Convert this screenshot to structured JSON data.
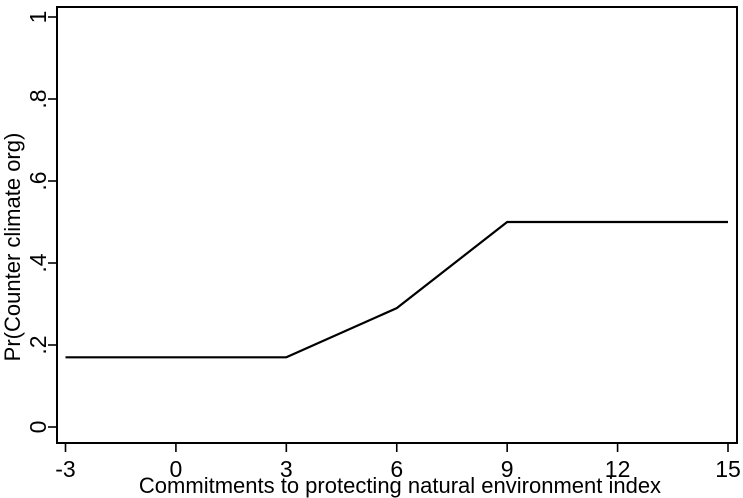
{
  "figure": {
    "background": "#ffffff",
    "frame_color": "#000000",
    "text_color": "#000000"
  },
  "chart_data": {
    "type": "line",
    "title": "",
    "xlabel": "Commitments to protecting natural environment index",
    "ylabel": "Pr(Counter climate org)",
    "x": [
      -3,
      0,
      3,
      6,
      9,
      12,
      15
    ],
    "series": [
      {
        "name": "Pr(Counter climate org)",
        "values": [
          0.17,
          0.17,
          0.17,
          0.29,
          0.5,
          0.5,
          0.5
        ]
      }
    ],
    "xlim": [
      -3,
      15
    ],
    "ylim": [
      0,
      1
    ],
    "xticks": [
      -3,
      0,
      3,
      6,
      9,
      12,
      15
    ],
    "xtick_labels": [
      "-3",
      "0",
      "3",
      "6",
      "9",
      "12",
      "15"
    ],
    "yticks": [
      0,
      0.2,
      0.4,
      0.6,
      0.8,
      1
    ],
    "ytick_labels": [
      "0",
      ".2",
      ".4",
      ".6",
      ".8",
      "1"
    ],
    "ytick_angle_deg": 90,
    "grid": false,
    "legend": "none",
    "frame": true,
    "line_color": "#000000",
    "line_width": 2.2
  }
}
